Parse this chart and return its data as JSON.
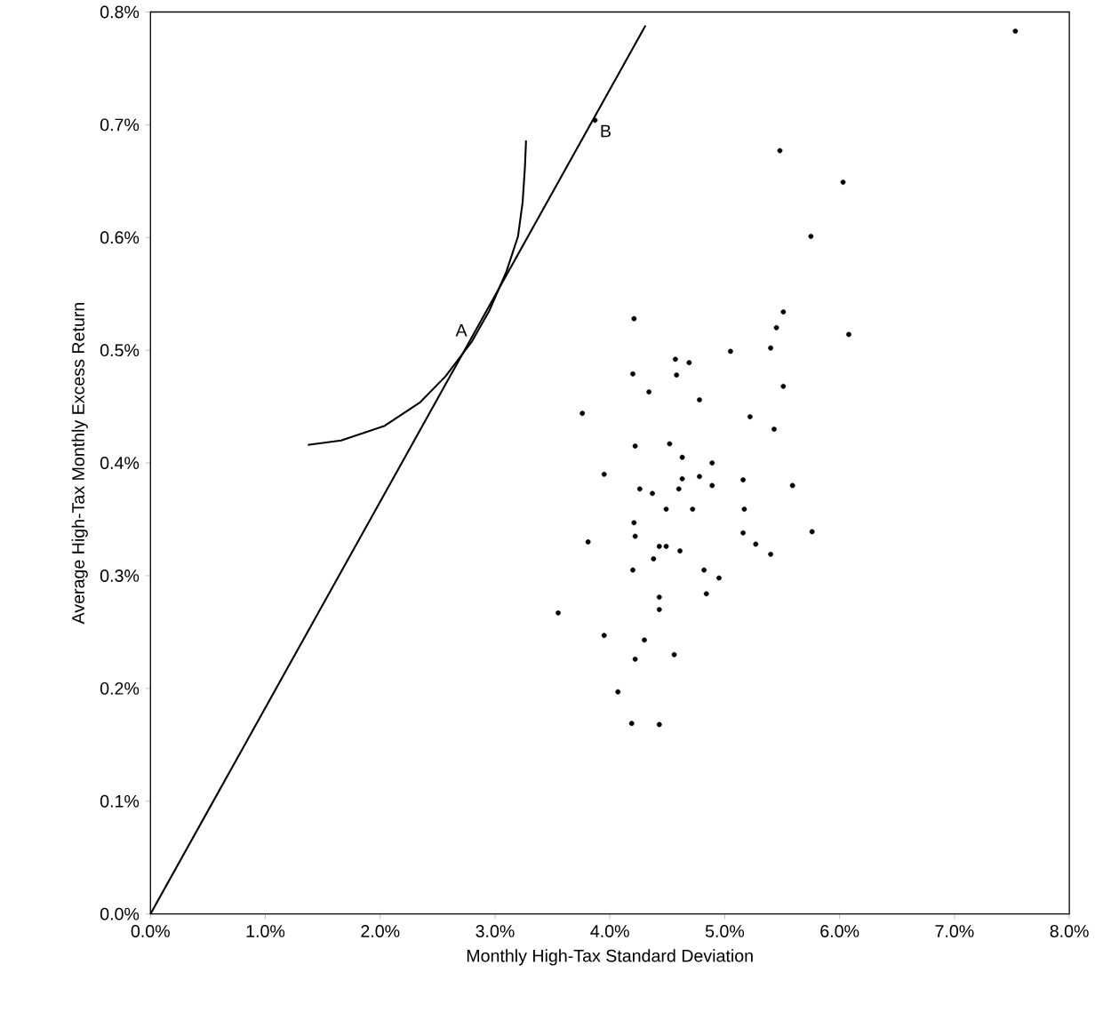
{
  "chart_data": {
    "type": "scatter",
    "xlabel": "Monthly High-Tax Standard Deviation",
    "ylabel": "Average High-Tax Monthly Excess Return",
    "xlim": [
      0,
      8
    ],
    "ylim": [
      0,
      0.8
    ],
    "xticks": [
      {
        "value": 0,
        "label": "0.0%"
      },
      {
        "value": 1,
        "label": "1.0%"
      },
      {
        "value": 2,
        "label": "2.0%"
      },
      {
        "value": 3,
        "label": "3.0%"
      },
      {
        "value": 4,
        "label": "4.0%"
      },
      {
        "value": 5,
        "label": "5.0%"
      },
      {
        "value": 6,
        "label": "6.0%"
      },
      {
        "value": 7,
        "label": "7.0%"
      },
      {
        "value": 8,
        "label": "8.0%"
      }
    ],
    "yticks": [
      {
        "value": 0,
        "label": "0.0%"
      },
      {
        "value": 0.1,
        "label": "0.1%"
      },
      {
        "value": 0.2,
        "label": "0.2%"
      },
      {
        "value": 0.3,
        "label": "0.3%"
      },
      {
        "value": 0.4,
        "label": "0.4%"
      },
      {
        "value": 0.5,
        "label": "0.5%"
      },
      {
        "value": 0.6,
        "label": "0.6%"
      },
      {
        "value": 0.7,
        "label": "0.7%"
      },
      {
        "value": 0.8,
        "label": "0.8%"
      }
    ],
    "grid": false,
    "series": [
      {
        "color": "#000000",
        "marker": "circle",
        "x": [
          7.53,
          3.87,
          5.48,
          6.03,
          5.75,
          5.51,
          4.21,
          5.45,
          6.08,
          5.05,
          5.4,
          4.57,
          4.69,
          4.2,
          4.58,
          5.51,
          4.34,
          4.78,
          3.76,
          5.22,
          5.43,
          4.52,
          4.22,
          4.63,
          4.89,
          3.95,
          4.63,
          4.78,
          5.16,
          4.26,
          4.37,
          4.6,
          4.89,
          5.59,
          4.49,
          4.72,
          5.17,
          4.21,
          4.22,
          5.16,
          5.76,
          3.81,
          5.27,
          4.43,
          4.49,
          4.61,
          5.4,
          4.38,
          4.2,
          4.82,
          4.95,
          4.84,
          4.43,
          4.43,
          3.55,
          3.95,
          4.3,
          4.56,
          4.22,
          4.07,
          4.19,
          4.43
        ],
        "values": [
          0.783,
          0.704,
          0.677,
          0.649,
          0.601,
          0.534,
          0.528,
          0.52,
          0.514,
          0.499,
          0.502,
          0.492,
          0.489,
          0.479,
          0.478,
          0.468,
          0.463,
          0.456,
          0.444,
          0.441,
          0.43,
          0.417,
          0.415,
          0.405,
          0.4,
          0.39,
          0.386,
          0.388,
          0.385,
          0.377,
          0.373,
          0.377,
          0.38,
          0.38,
          0.359,
          0.359,
          0.359,
          0.347,
          0.335,
          0.338,
          0.339,
          0.33,
          0.328,
          0.326,
          0.326,
          0.322,
          0.319,
          0.315,
          0.305,
          0.305,
          0.298,
          0.284,
          0.281,
          0.27,
          0.267,
          0.247,
          0.243,
          0.23,
          0.226,
          0.197,
          0.169,
          0.168
        ]
      },
      {
        "type": "line",
        "color": "#000000",
        "marker": "none",
        "line_style": "solid",
        "x": [
          0,
          4.31
        ],
        "values": [
          0,
          0.788
        ]
      },
      {
        "type": "line",
        "color": "#000000",
        "marker": "none",
        "line_style": "solid",
        "x": [
          1.37,
          1.66,
          2.04,
          2.35,
          2.57,
          2.8,
          2.95,
          3.1,
          3.2,
          3.24,
          3.26,
          3.27
        ],
        "values": [
          0.416,
          0.42,
          0.433,
          0.454,
          0.477,
          0.508,
          0.535,
          0.57,
          0.601,
          0.631,
          0.662,
          0.686
        ]
      }
    ],
    "annotations": [
      {
        "text": "A",
        "x": 2.8,
        "y": 0.508
      },
      {
        "text": "B",
        "x": 3.87,
        "y": 0.704
      }
    ]
  }
}
